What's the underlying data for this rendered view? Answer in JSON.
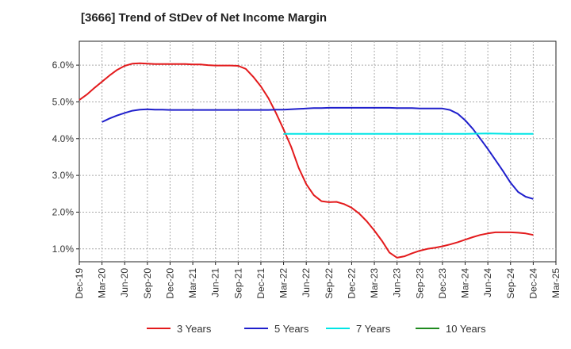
{
  "title": "[3666]  Trend of StDev of Net Income Margin",
  "chart_data": {
    "type": "line",
    "title": "[3666]  Trend of StDev of Net Income Margin",
    "xlabel": "",
    "ylabel": "",
    "ylim": [
      0.65,
      6.65
    ],
    "y_ticks": [
      1.0,
      2.0,
      3.0,
      4.0,
      5.0,
      6.0
    ],
    "y_tick_labels": [
      "1.0%",
      "2.0%",
      "3.0%",
      "4.0%",
      "5.0%",
      "6.0%"
    ],
    "x_tick_labels": [
      "Dec-19",
      "Mar-20",
      "Jun-20",
      "Sep-20",
      "Dec-20",
      "Mar-21",
      "Jun-21",
      "Sep-21",
      "Dec-21",
      "Mar-22",
      "Jun-22",
      "Sep-22",
      "Dec-22",
      "Mar-23",
      "Jun-23",
      "Sep-23",
      "Dec-23",
      "Mar-24",
      "Jun-24",
      "Sep-24",
      "Dec-24",
      "Mar-25"
    ],
    "grid": true,
    "legend_position": "bottom",
    "series": [
      {
        "name": "3 Years",
        "color": "#e31a1c",
        "x": [
          "2019-12",
          "2020-01",
          "2020-02",
          "2020-03",
          "2020-04",
          "2020-05",
          "2020-06",
          "2020-07",
          "2020-08",
          "2020-09",
          "2020-10",
          "2020-11",
          "2020-12",
          "2021-01",
          "2021-02",
          "2021-03",
          "2021-04",
          "2021-05",
          "2021-06",
          "2021-07",
          "2021-08",
          "2021-09",
          "2021-10",
          "2021-11",
          "2021-12",
          "2022-01",
          "2022-02",
          "2022-03",
          "2022-04",
          "2022-05",
          "2022-06",
          "2022-07",
          "2022-08",
          "2022-09",
          "2022-10",
          "2022-11",
          "2022-12",
          "2023-01",
          "2023-02",
          "2023-03",
          "2023-04",
          "2023-05",
          "2023-06",
          "2023-07",
          "2023-08",
          "2023-09",
          "2023-10",
          "2023-11",
          "2023-12",
          "2024-01",
          "2024-02",
          "2024-03",
          "2024-04",
          "2024-05",
          "2024-06",
          "2024-07",
          "2024-08",
          "2024-09",
          "2024-10",
          "2024-11",
          "2024-12"
        ],
        "values": [
          5.05,
          5.2,
          5.38,
          5.55,
          5.72,
          5.87,
          5.98,
          6.04,
          6.05,
          6.04,
          6.03,
          6.03,
          6.03,
          6.03,
          6.03,
          6.02,
          6.02,
          6.0,
          5.99,
          5.99,
          5.99,
          5.98,
          5.9,
          5.68,
          5.42,
          5.1,
          4.7,
          4.25,
          3.78,
          3.2,
          2.76,
          2.46,
          2.3,
          2.27,
          2.28,
          2.22,
          2.12,
          1.96,
          1.75,
          1.5,
          1.22,
          0.9,
          0.76,
          0.8,
          0.88,
          0.95,
          1.0,
          1.03,
          1.07,
          1.12,
          1.18,
          1.25,
          1.32,
          1.38,
          1.42,
          1.45,
          1.45,
          1.45,
          1.44,
          1.42,
          1.38
        ]
      },
      {
        "name": "5 Years",
        "color": "#1f1fcc",
        "x": [
          "2020-03",
          "2020-04",
          "2020-05",
          "2020-06",
          "2020-07",
          "2020-08",
          "2020-09",
          "2020-10",
          "2020-11",
          "2020-12",
          "2021-01",
          "2021-02",
          "2021-03",
          "2021-04",
          "2021-05",
          "2021-06",
          "2021-07",
          "2021-08",
          "2021-09",
          "2021-10",
          "2021-11",
          "2021-12",
          "2022-01",
          "2022-02",
          "2022-03",
          "2022-04",
          "2022-05",
          "2022-06",
          "2022-07",
          "2022-08",
          "2022-09",
          "2022-10",
          "2022-11",
          "2022-12",
          "2023-01",
          "2023-02",
          "2023-03",
          "2023-04",
          "2023-05",
          "2023-06",
          "2023-07",
          "2023-08",
          "2023-09",
          "2023-10",
          "2023-11",
          "2023-12",
          "2024-01",
          "2024-02",
          "2024-03",
          "2024-04",
          "2024-05",
          "2024-06",
          "2024-07",
          "2024-08",
          "2024-09",
          "2024-10",
          "2024-11",
          "2024-12"
        ],
        "values": [
          4.45,
          4.55,
          4.63,
          4.7,
          4.76,
          4.79,
          4.8,
          4.79,
          4.79,
          4.78,
          4.78,
          4.78,
          4.78,
          4.78,
          4.78,
          4.78,
          4.78,
          4.78,
          4.78,
          4.78,
          4.78,
          4.78,
          4.78,
          4.79,
          4.79,
          4.8,
          4.81,
          4.82,
          4.83,
          4.83,
          4.84,
          4.84,
          4.84,
          4.84,
          4.84,
          4.84,
          4.84,
          4.84,
          4.84,
          4.83,
          4.83,
          4.83,
          4.82,
          4.82,
          4.82,
          4.82,
          4.78,
          4.68,
          4.5,
          4.27,
          4.0,
          3.72,
          3.42,
          3.12,
          2.8,
          2.55,
          2.42,
          2.36
        ]
      },
      {
        "name": "7 Years",
        "color": "#00e5e5",
        "x": [
          "2022-03",
          "2022-06",
          "2022-09",
          "2022-12",
          "2023-03",
          "2023-06",
          "2023-09",
          "2023-12",
          "2024-03",
          "2024-06",
          "2024-09",
          "2024-12"
        ],
        "values": [
          4.13,
          4.13,
          4.13,
          4.13,
          4.13,
          4.13,
          4.13,
          4.13,
          4.13,
          4.14,
          4.13,
          4.13
        ]
      },
      {
        "name": "10 Years",
        "color": "#1f8a1f",
        "x": [],
        "values": []
      }
    ]
  }
}
